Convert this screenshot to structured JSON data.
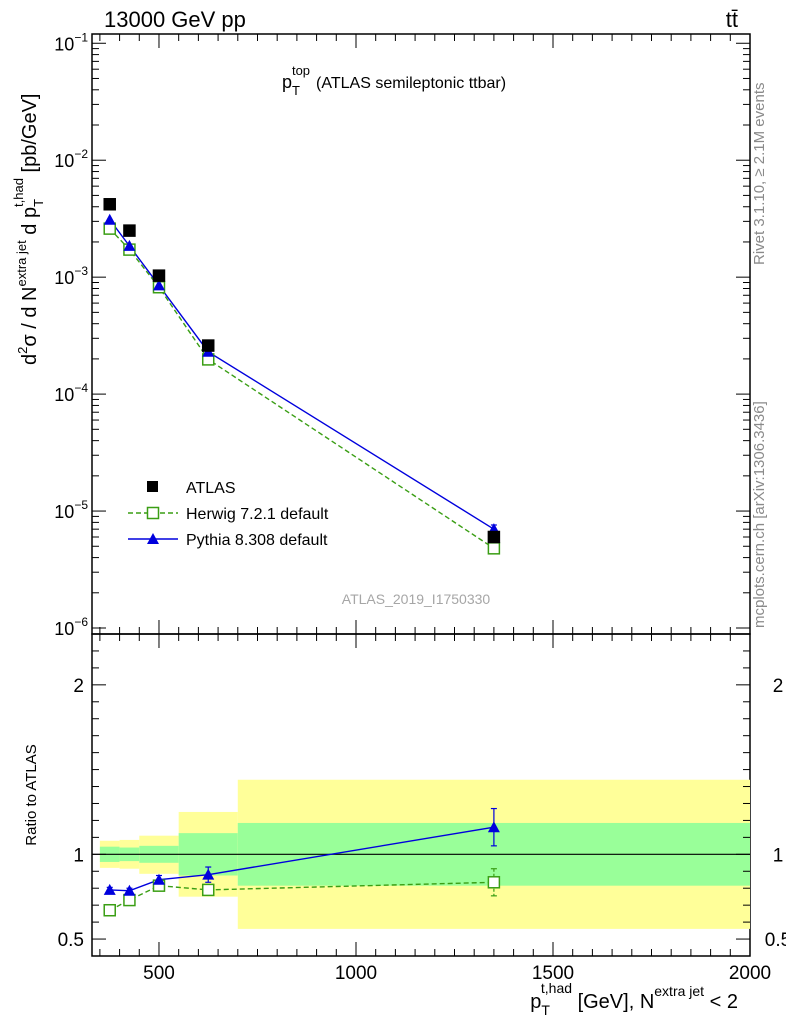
{
  "header": {
    "left": "13000 GeV pp",
    "right": "tt̄"
  },
  "side_labels": {
    "rivet": "Rivet 3.1.10, ≥ 2.1M events",
    "mcplots": "mcplots.cern.ch [arXiv:1306.3436]"
  },
  "watermark": "ATLAS_2019_I1750330",
  "plot_title": {
    "main": "p",
    "sub": "T",
    "sup": "top",
    "rest": "(ATLAS semileptonic ttbar)"
  },
  "axes": {
    "ylabel_main_parts": {
      "d2sigma": "d",
      "sq": "2",
      "sigma": "σ",
      "slash": " /  d N",
      "extra": "extra jet",
      "dp": " d p",
      "pT_sub": "T",
      "pT_sup": "t,had",
      "units": " [pb/GeV]"
    },
    "ylabel_ratio": "Ratio to ATLAS",
    "xlabel_parts": {
      "p": "p",
      "sub": "T",
      "sup": "t,had",
      "mid": " [GeV], N",
      "sup2": "extra jet",
      "end": " < 2"
    }
  },
  "legend": [
    {
      "label": "ATLAS",
      "color": "#000000",
      "marker": "square-filled"
    },
    {
      "label": "Herwig 7.2.1 default",
      "color": "#3a9e14",
      "marker": "square-open",
      "dash": true
    },
    {
      "label": "Pythia 8.308 default",
      "color": "#0000dd",
      "marker": "triangle-filled"
    }
  ],
  "chart_data": [
    {
      "type": "scatter",
      "panel": "main",
      "yscale": "log",
      "xlim": [
        330,
        2000
      ],
      "ylim": [
        1e-06,
        0.12
      ],
      "yticks": [
        {
          "v": 1e-06,
          "base": "10",
          "exp": "−6"
        },
        {
          "v": 1e-05,
          "base": "10",
          "exp": "−5"
        },
        {
          "v": 0.0001,
          "base": "10",
          "exp": "−4"
        },
        {
          "v": 0.001,
          "base": "10",
          "exp": "−3"
        },
        {
          "v": 0.01,
          "base": "10",
          "exp": "−2"
        },
        {
          "v": 0.1,
          "base": "10",
          "exp": "−1"
        }
      ],
      "series": [
        {
          "name": "ATLAS",
          "x": [
            375,
            425,
            500,
            625,
            1350
          ],
          "y": [
            0.0042,
            0.0025,
            0.00103,
            0.00026,
            6e-06
          ]
        },
        {
          "name": "Herwig 7.2.1 default",
          "x": [
            375,
            425,
            500,
            625,
            1350
          ],
          "y": [
            0.0026,
            0.00172,
            0.00082,
            0.000198,
            4.8e-06
          ]
        },
        {
          "name": "Pythia 8.308 default",
          "x": [
            375,
            425,
            500,
            625,
            1350
          ],
          "y": [
            0.0031,
            0.00185,
            0.00085,
            0.00023,
            7e-06
          ],
          "yerr": [
            0,
            0,
            0,
            0,
            6e-07
          ]
        }
      ]
    },
    {
      "type": "line",
      "panel": "ratio",
      "xlim": [
        330,
        2000
      ],
      "ylim": [
        0.4,
        2.3
      ],
      "xticks": [
        500,
        1000,
        1500,
        2000
      ],
      "yticks": [
        0.5,
        1,
        2
      ],
      "reference": 1,
      "bands": [
        {
          "x0": 350,
          "x1": 400,
          "inner": [
            0.955,
            1.045
          ],
          "outer": [
            0.92,
            1.08
          ]
        },
        {
          "x0": 400,
          "x1": 450,
          "inner": [
            0.96,
            1.04
          ],
          "outer": [
            0.915,
            1.085
          ]
        },
        {
          "x0": 450,
          "x1": 550,
          "inner": [
            0.95,
            1.05
          ],
          "outer": [
            0.885,
            1.11
          ]
        },
        {
          "x0": 550,
          "x1": 700,
          "inner": [
            0.875,
            1.125
          ],
          "outer": [
            0.75,
            1.25
          ]
        },
        {
          "x0": 700,
          "x1": 2000,
          "inner": [
            0.815,
            1.185
          ],
          "outer": [
            0.56,
            1.44
          ]
        }
      ],
      "series": [
        {
          "name": "Herwig 7.2.1 default",
          "x": [
            375,
            425,
            500,
            625,
            1350
          ],
          "y": [
            0.67,
            0.73,
            0.815,
            0.79,
            0.835
          ],
          "yerr": [
            0.01,
            0.015,
            0.015,
            0.03,
            0.08
          ]
        },
        {
          "name": "Pythia 8.308 default",
          "x": [
            375,
            425,
            500,
            625,
            1350
          ],
          "y": [
            0.79,
            0.785,
            0.85,
            0.88,
            1.16
          ],
          "yerr": [
            0.015,
            0.015,
            0.025,
            0.045,
            0.11
          ]
        }
      ]
    }
  ]
}
